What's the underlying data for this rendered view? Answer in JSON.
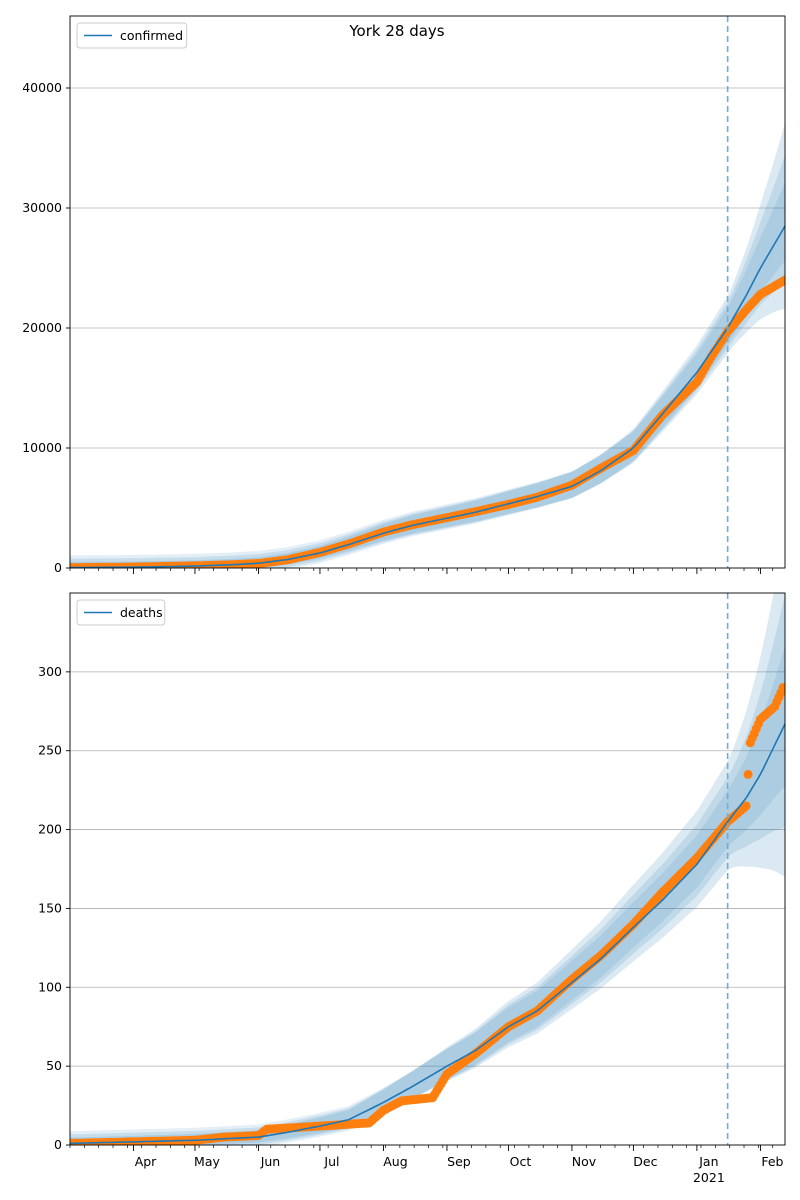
{
  "figure": {
    "title": "York 28 days"
  },
  "chart_data": [
    {
      "type": "line",
      "legend": {
        "position": "upper-left",
        "entries": [
          "confirmed"
        ]
      },
      "x_range": [
        "2020-03-01",
        "2021-02-13"
      ],
      "ylim": [
        0,
        46000
      ],
      "yticks": [
        0,
        10000,
        20000,
        30000,
        40000
      ],
      "grid": "y",
      "forecast_start": "2021-01-16",
      "band_scale": [
        0.035,
        0.07,
        0.11
      ],
      "series": [
        {
          "name": "confirmed",
          "color": "#1f77b4",
          "model": [
            [
              "2020-03-01",
              40
            ],
            [
              "2020-04-01",
              70
            ],
            [
              "2020-05-01",
              160
            ],
            [
              "2020-05-20",
              280
            ],
            [
              "2020-06-01",
              400
            ],
            [
              "2020-06-15",
              700
            ],
            [
              "2020-07-01",
              1250
            ],
            [
              "2020-07-15",
              1950
            ],
            [
              "2020-08-01",
              2900
            ],
            [
              "2020-08-15",
              3550
            ],
            [
              "2020-09-01",
              4150
            ],
            [
              "2020-09-15",
              4650
            ],
            [
              "2020-10-01",
              5350
            ],
            [
              "2020-10-15",
              5950
            ],
            [
              "2020-11-01",
              6800
            ],
            [
              "2020-11-15",
              8100
            ],
            [
              "2020-12-01",
              10000
            ],
            [
              "2020-12-15",
              12800
            ],
            [
              "2021-01-01",
              16300
            ],
            [
              "2021-01-16",
              20000
            ],
            [
              "2021-01-25",
              22700
            ],
            [
              "2021-02-01",
              25000
            ],
            [
              "2021-02-13",
              28500
            ]
          ]
        }
      ],
      "observed": {
        "color": "#ff7f0e",
        "points": [
          [
            "2020-03-01",
            30
          ],
          [
            "2020-04-01",
            80
          ],
          [
            "2020-05-01",
            180
          ],
          [
            "2020-05-20",
            280
          ],
          [
            "2020-06-01",
            380
          ],
          [
            "2020-06-15",
            680
          ],
          [
            "2020-07-01",
            1300
          ],
          [
            "2020-07-15",
            2000
          ],
          [
            "2020-08-01",
            3000
          ],
          [
            "2020-08-15",
            3600
          ],
          [
            "2020-09-01",
            4200
          ],
          [
            "2020-09-15",
            4700
          ],
          [
            "2020-10-01",
            5300
          ],
          [
            "2020-10-15",
            5900
          ],
          [
            "2020-11-01",
            6900
          ],
          [
            "2020-11-15",
            8300
          ],
          [
            "2020-12-01",
            9800
          ],
          [
            "2020-12-15",
            12700
          ],
          [
            "2021-01-01",
            15500
          ],
          [
            "2021-01-08",
            17600
          ],
          [
            "2021-01-16",
            19700
          ],
          [
            "2021-01-25",
            21500
          ],
          [
            "2021-02-01",
            22800
          ],
          [
            "2021-02-13",
            24000
          ]
        ]
      }
    },
    {
      "type": "line",
      "legend": {
        "position": "upper-left",
        "entries": [
          "deaths"
        ]
      },
      "x_range": [
        "2020-03-01",
        "2021-02-13"
      ],
      "ylim": [
        0,
        350
      ],
      "yticks": [
        0,
        50,
        100,
        150,
        200,
        250,
        300
      ],
      "grid": "y",
      "forecast_start": "2021-01-16",
      "band_scale": [
        0.06,
        0.11,
        0.17
      ],
      "x_tick_labels": [
        "Apr",
        "May",
        "Jun",
        "Jul",
        "Aug",
        "Sep",
        "Oct",
        "Nov",
        "Dec",
        "Jan",
        "Feb"
      ],
      "x_tick_dates": [
        "2020-04-01",
        "2020-05-01",
        "2020-06-01",
        "2020-07-01",
        "2020-08-01",
        "2020-09-01",
        "2020-10-01",
        "2020-11-01",
        "2020-12-01",
        "2021-01-01",
        "2021-02-01"
      ],
      "x_year_label": "2021",
      "series": [
        {
          "name": "deaths",
          "color": "#1f77b4",
          "model": [
            [
              "2020-03-01",
              1
            ],
            [
              "2020-04-01",
              2
            ],
            [
              "2020-05-01",
              3
            ],
            [
              "2020-06-01",
              5
            ],
            [
              "2020-06-15",
              8
            ],
            [
              "2020-07-01",
              12
            ],
            [
              "2020-07-15",
              16
            ],
            [
              "2020-08-01",
              27
            ],
            [
              "2020-08-15",
              37
            ],
            [
              "2020-09-01",
              50
            ],
            [
              "2020-09-15",
              60
            ],
            [
              "2020-10-01",
              75
            ],
            [
              "2020-10-15",
              85
            ],
            [
              "2020-11-01",
              103
            ],
            [
              "2020-11-15",
              118
            ],
            [
              "2020-12-01",
              138
            ],
            [
              "2020-12-15",
              155
            ],
            [
              "2021-01-01",
              178
            ],
            [
              "2021-01-16",
              205
            ],
            [
              "2021-01-25",
              220
            ],
            [
              "2021-02-01",
              235
            ],
            [
              "2021-02-13",
              267
            ]
          ]
        }
      ],
      "observed": {
        "color": "#ff7f0e",
        "points": [
          [
            "2020-03-01",
            1
          ],
          [
            "2020-04-01",
            2
          ],
          [
            "2020-05-01",
            3
          ],
          [
            "2020-05-15",
            5
          ],
          [
            "2020-06-01",
            6
          ],
          [
            "2020-06-05",
            10
          ],
          [
            "2020-07-01",
            12
          ],
          [
            "2020-07-25",
            14
          ],
          [
            "2020-08-01",
            22
          ],
          [
            "2020-08-10",
            28
          ],
          [
            "2020-08-25",
            30
          ],
          [
            "2020-09-01",
            45
          ],
          [
            "2020-09-15",
            58
          ],
          [
            "2020-10-01",
            75
          ],
          [
            "2020-10-15",
            85
          ],
          [
            "2020-11-01",
            105
          ],
          [
            "2020-11-15",
            120
          ],
          [
            "2020-12-01",
            140
          ],
          [
            "2020-12-15",
            160
          ],
          [
            "2021-01-01",
            182
          ],
          [
            "2021-01-16",
            205
          ],
          [
            "2021-01-25",
            215
          ],
          [
            "2021-01-27",
            255
          ],
          [
            "2021-02-01",
            270
          ],
          [
            "2021-02-08",
            278
          ],
          [
            "2021-02-12",
            290
          ]
        ]
      }
    }
  ]
}
